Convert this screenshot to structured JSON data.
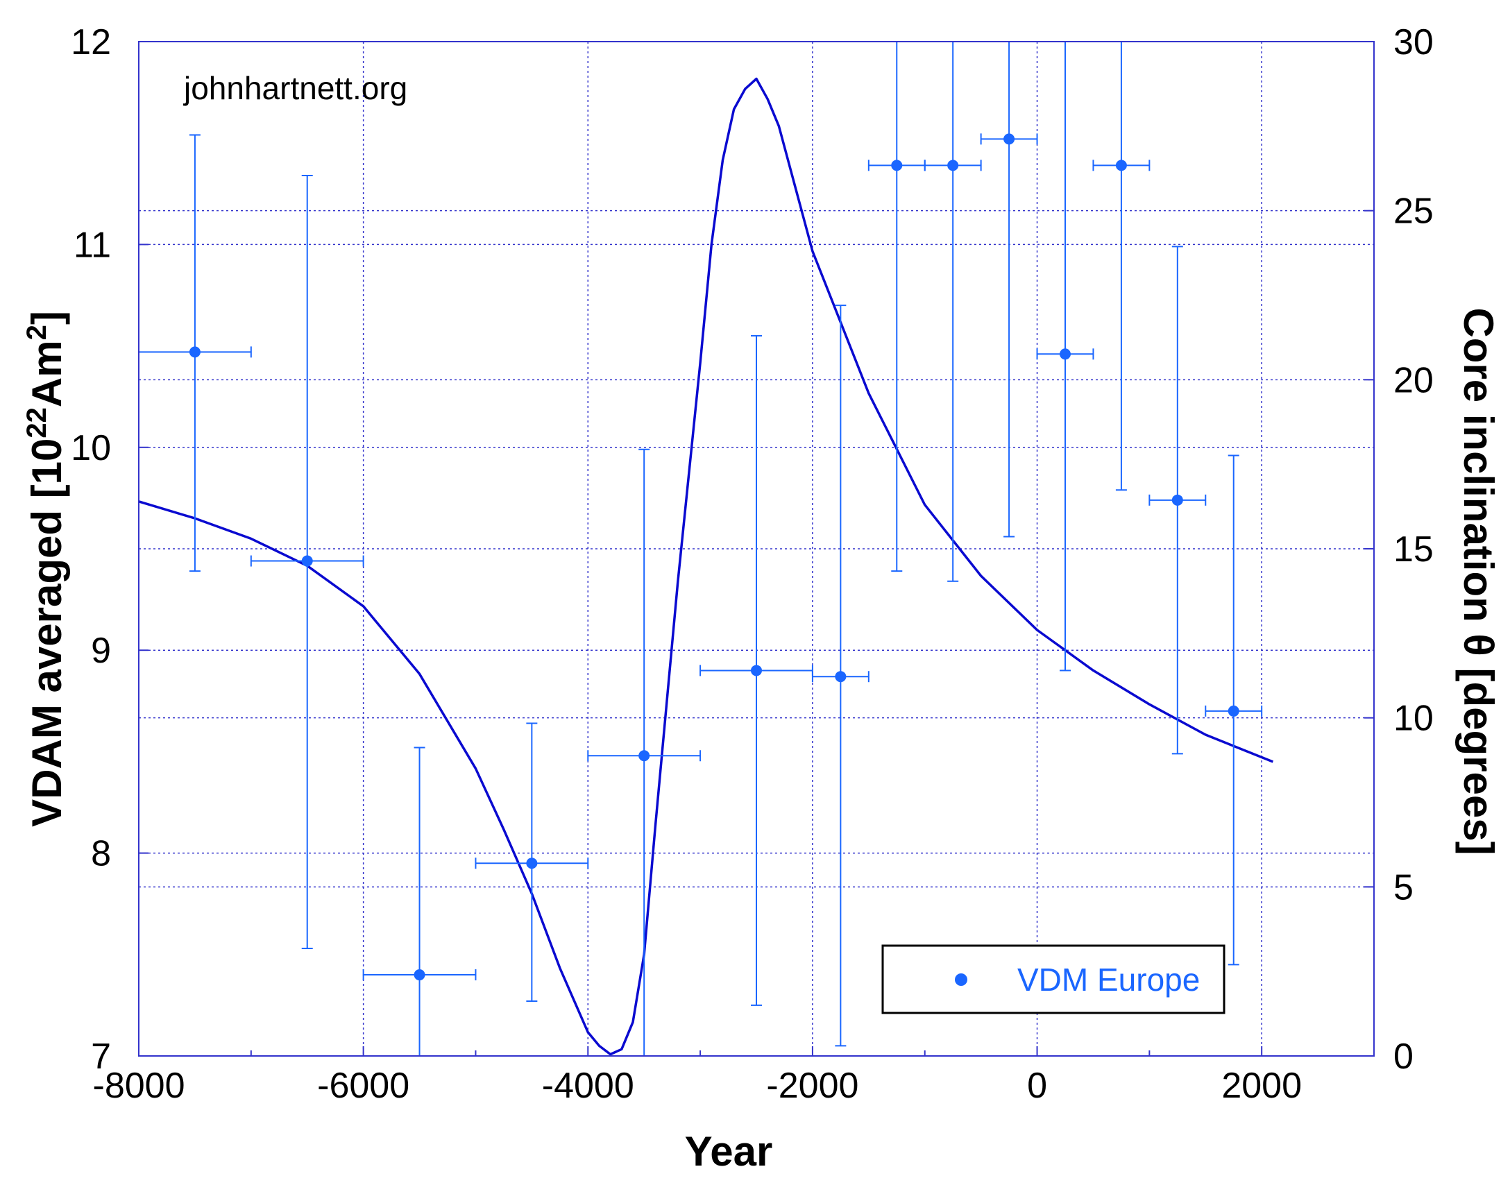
{
  "watermark": "johnhartnett.org",
  "colors": {
    "points": "#1a66ff",
    "curve": "#0a0ad0",
    "axes": "#3333cc",
    "grid": "#3333cc"
  },
  "chart_data": {
    "type": "scatter",
    "xlabel": "Year",
    "ylabel_left": {
      "prefix": "VDAM averaged [10",
      "sup1": "22",
      "middle": "Am",
      "sup2": "2",
      "suffix": "]"
    },
    "ylabel_right": "Core inclination θ [degrees]",
    "xlim": [
      -8000,
      3000
    ],
    "ylim_left": [
      7,
      12
    ],
    "ylim_right": [
      0,
      30
    ],
    "x_ticks": [
      -8000,
      -6000,
      -4000,
      -2000,
      0,
      2000
    ],
    "x_tick_labels": [
      "-8000",
      "-6000",
      "-4000",
      "-2000",
      "0",
      "2000"
    ],
    "y_left_ticks": [
      7,
      8,
      9,
      10,
      11,
      12
    ],
    "y_left_tick_labels": [
      "7",
      "8",
      "9",
      "10",
      "11",
      "12"
    ],
    "y_right_ticks": [
      0,
      5,
      10,
      15,
      20,
      25,
      30
    ],
    "y_right_tick_labels": [
      "0",
      "5",
      "10",
      "15",
      "20",
      "25",
      "30"
    ],
    "grid": true,
    "legend": {
      "position": "bottom-right",
      "entries": [
        "VDM Europe"
      ]
    },
    "series": [
      {
        "name": "VDM Europe",
        "kind": "points-with-errorbars",
        "axis": "left",
        "points": [
          {
            "x": -7500,
            "y": 10.47,
            "xerr": 500,
            "ylo": 9.39,
            "yhi": 11.54
          },
          {
            "x": -6500,
            "y": 9.44,
            "xerr": 500,
            "ylo": 7.53,
            "yhi": 11.34
          },
          {
            "x": -5500,
            "y": 7.4,
            "xerr": 500,
            "ylo": 7.0,
            "yhi": 8.52
          },
          {
            "x": -4500,
            "y": 7.95,
            "xerr": 500,
            "ylo": 7.27,
            "yhi": 8.64
          },
          {
            "x": -3500,
            "y": 8.48,
            "xerr": 500,
            "ylo": 7.0,
            "yhi": 9.99
          },
          {
            "x": -2500,
            "y": 8.9,
            "xerr": 500,
            "ylo": 7.25,
            "yhi": 10.55
          },
          {
            "x": -1750,
            "y": 8.87,
            "xerr": 250,
            "ylo": 7.05,
            "yhi": 10.7
          },
          {
            "x": -1250,
            "y": 11.39,
            "xerr": 250,
            "ylo": 9.39,
            "yhi": 12.0
          },
          {
            "x": -750,
            "y": 11.39,
            "xerr": 250,
            "ylo": 9.34,
            "yhi": 12.0
          },
          {
            "x": -250,
            "y": 11.52,
            "xerr": 250,
            "ylo": 9.56,
            "yhi": 12.0
          },
          {
            "x": 250,
            "y": 10.46,
            "xerr": 250,
            "ylo": 8.9,
            "yhi": 12.0
          },
          {
            "x": 750,
            "y": 11.39,
            "xerr": 250,
            "ylo": 9.79,
            "yhi": 12.0
          },
          {
            "x": 1250,
            "y": 9.74,
            "xerr": 250,
            "ylo": 8.49,
            "yhi": 10.99
          },
          {
            "x": 1750,
            "y": 8.7,
            "xerr": 250,
            "ylo": 7.45,
            "yhi": 9.96
          }
        ]
      },
      {
        "kind": "line",
        "axis": "right",
        "points": [
          [
            -8000,
            16.4
          ],
          [
            -7500,
            15.9
          ],
          [
            -7000,
            15.3
          ],
          [
            -6500,
            14.5
          ],
          [
            -6000,
            13.3
          ],
          [
            -5500,
            11.3
          ],
          [
            -5000,
            8.5
          ],
          [
            -4750,
            6.7
          ],
          [
            -4500,
            4.8
          ],
          [
            -4250,
            2.6
          ],
          [
            -4000,
            0.7
          ],
          [
            -3900,
            0.3
          ],
          [
            -3800,
            0.05
          ],
          [
            -3700,
            0.2
          ],
          [
            -3600,
            1.0
          ],
          [
            -3500,
            3.0
          ],
          [
            -3400,
            6.8
          ],
          [
            -3200,
            14.0
          ],
          [
            -3000,
            20.5
          ],
          [
            -2900,
            24.0
          ],
          [
            -2800,
            26.5
          ],
          [
            -2700,
            28.0
          ],
          [
            -2600,
            28.6
          ],
          [
            -2500,
            28.9
          ],
          [
            -2400,
            28.3
          ],
          [
            -2300,
            27.5
          ],
          [
            -2000,
            23.8
          ],
          [
            -1500,
            19.6
          ],
          [
            -1000,
            16.3
          ],
          [
            -500,
            14.2
          ],
          [
            0,
            12.6
          ],
          [
            500,
            11.4
          ],
          [
            1000,
            10.4
          ],
          [
            1500,
            9.5
          ],
          [
            2100,
            8.7
          ]
        ]
      }
    ]
  }
}
